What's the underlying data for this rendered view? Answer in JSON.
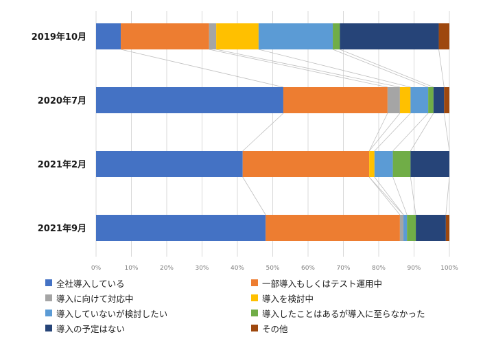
{
  "chart_data": {
    "type": "bar",
    "orientation": "horizontal",
    "stacked": "percent",
    "categories": [
      "2019年10月",
      "2020年7月",
      "2021年2月",
      "2021年9月"
    ],
    "series": [
      {
        "name": "全社導入している",
        "color": "#4472C4",
        "values": [
          7,
          53,
          41.5,
          48
        ]
      },
      {
        "name": "一部導入もしくはテスト運用中",
        "color": "#ED7D31",
        "values": [
          25,
          29.5,
          35.8,
          38
        ]
      },
      {
        "name": "導入に向けて対応中",
        "color": "#A5A5A5",
        "values": [
          2,
          3.5,
          0,
          1
        ]
      },
      {
        "name": "導入を検討中",
        "color": "#FFC000",
        "values": [
          12,
          3,
          1.5,
          0
        ]
      },
      {
        "name": "導入していないが検討したい",
        "color": "#5B9BD5",
        "values": [
          21,
          5,
          5.2,
          1
        ]
      },
      {
        "name": "導入したことはあるが導入に至らなかった",
        "color": "#70AD47",
        "values": [
          2,
          1.5,
          5,
          2.5
        ]
      },
      {
        "name": "導入の予定はない",
        "color": "#264478",
        "values": [
          28,
          3,
          11,
          8.5
        ]
      },
      {
        "name": "その他",
        "color": "#9E480E",
        "values": [
          3,
          1.5,
          0,
          1
        ]
      }
    ],
    "xlim": [
      0,
      100
    ],
    "x_ticks": [
      "0%",
      "10%",
      "20%",
      "30%",
      "40%",
      "50%",
      "60%",
      "70%",
      "80%",
      "90%",
      "100%"
    ],
    "grid": true,
    "series_connector_lines": true,
    "legend_position": "bottom"
  }
}
